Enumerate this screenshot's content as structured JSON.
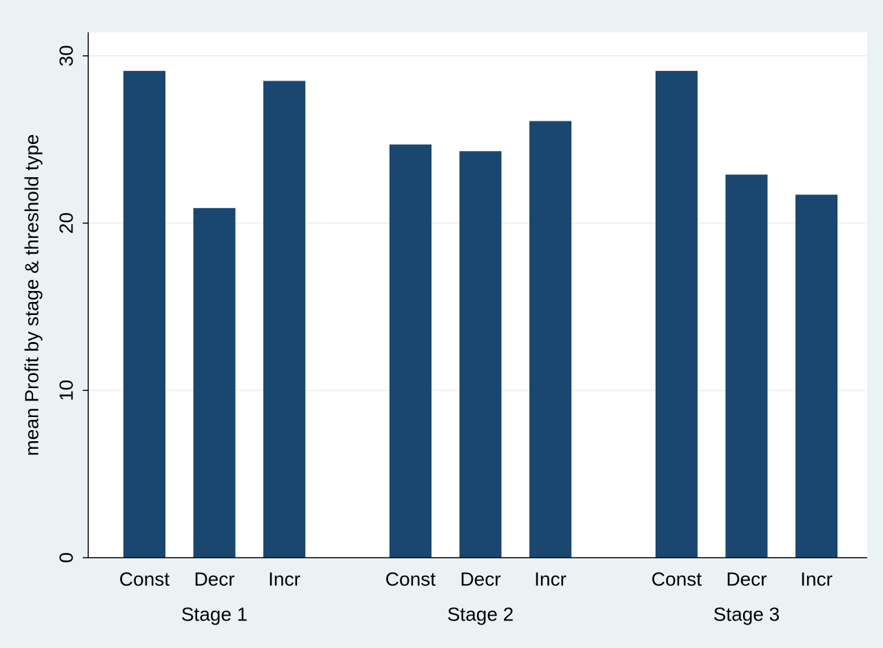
{
  "chart_data": {
    "type": "grouped-bar",
    "y_label": "mean Profit by stage & threshold type",
    "groups": [
      {
        "label": "Stage 1",
        "categories": [
          "Const",
          "Decr",
          "Incr"
        ],
        "values": [
          29.1,
          20.9,
          28.5
        ]
      },
      {
        "label": "Stage 2",
        "categories": [
          "Const",
          "Decr",
          "Incr"
        ],
        "values": [
          24.7,
          24.3,
          26.1
        ]
      },
      {
        "label": "Stage 3",
        "categories": [
          "Const",
          "Decr",
          "Incr"
        ],
        "values": [
          29.1,
          22.9,
          21.7
        ]
      }
    ],
    "color": "#1a476f",
    "ylim": [
      0,
      31.4
    ],
    "yticks": [
      0,
      10,
      20,
      30
    ],
    "grid": true
  }
}
